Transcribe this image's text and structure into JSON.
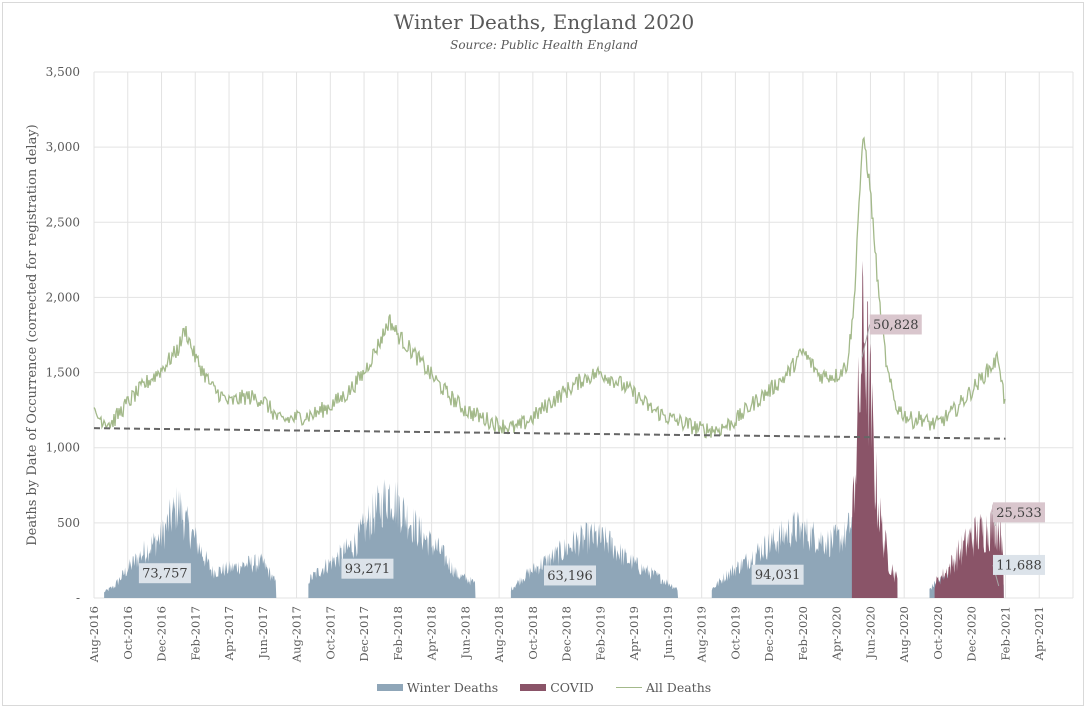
{
  "colors": {
    "winter": "#8fa6b8",
    "covid": "#8a5468",
    "all": "#a3b98a",
    "trend": "#666666",
    "grid": "#e3e3e3",
    "label_winter_bg": "#dce3ea",
    "label_covid_bg": "#d9c6cd",
    "text": "#595959"
  },
  "chart_data": {
    "type": "area",
    "title": "Winter Deaths, England 2020",
    "subtitle": "Source: Public Health England",
    "ylabel": "Deaths by Date of Occurrence (corrected for registration delay)",
    "xlabel": "",
    "ylim": [
      0,
      3500
    ],
    "yticks": [
      {
        "value": 0,
        "label": "-"
      },
      {
        "value": 500,
        "label": "500"
      },
      {
        "value": 1000,
        "label": "1,000"
      },
      {
        "value": 1500,
        "label": "1,500"
      },
      {
        "value": 2000,
        "label": "2,000"
      },
      {
        "value": 2500,
        "label": "2,500"
      },
      {
        "value": 3000,
        "label": "3,000"
      },
      {
        "value": 3500,
        "label": "3,500"
      }
    ],
    "x_unit": "months since Aug-2016",
    "xlim": [
      0,
      58
    ],
    "xticks": [
      "Aug-2016",
      "Oct-2016",
      "Dec-2016",
      "Feb-2017",
      "Apr-2017",
      "Jun-2017",
      "Aug-2017",
      "Oct-2017",
      "Dec-2017",
      "Feb-2018",
      "Apr-2018",
      "Jun-2018",
      "Aug-2018",
      "Oct-2018",
      "Dec-2018",
      "Feb-2019",
      "Apr-2019",
      "Jun-2019",
      "Aug-2019",
      "Oct-2019",
      "Dec-2019",
      "Feb-2020",
      "Apr-2020",
      "Jun-2020",
      "Aug-2020",
      "Oct-2020",
      "Dec-2020",
      "Feb-2021",
      "Apr-2021"
    ],
    "grid": true,
    "legend_position": "bottom",
    "series": [
      {
        "name": "Winter Deaths",
        "type": "area",
        "segments": [
          {
            "x": [
              0.6,
              1.2,
              2,
              3,
              4,
              5,
              5.4,
              6,
              7,
              8,
              9,
              10,
              10.8
            ],
            "y": [
              40,
              80,
              200,
              320,
              420,
              640,
              520,
              400,
              180,
              200,
              230,
              240,
              100
            ]
          },
          {
            "x": [
              12.7,
              13.5,
              14.5,
              15.5,
              16.5,
              17.5,
              18.5,
              19.5,
              20.5,
              21.5,
              22.6
            ],
            "y": [
              120,
              200,
              280,
              380,
              560,
              720,
              560,
              420,
              320,
              160,
              100
            ]
          },
          {
            "x": [
              24.7,
              25.5,
              26.5,
              27.5,
              28.5,
              29.5,
              30.5,
              31.5,
              32.5,
              33.5,
              34.6
            ],
            "y": [
              60,
              150,
              230,
              300,
              380,
              420,
              380,
              270,
              200,
              140,
              60
            ]
          },
          {
            "x": [
              36.6,
              37.5,
              38.5,
              39.5,
              40.5,
              41.5,
              42.5,
              43.5,
              44.5,
              45.3,
              45.8,
              46.5,
              47,
              47.6
            ],
            "y": [
              60,
              160,
              240,
              330,
              400,
              480,
              430,
              380,
              420,
              620,
              500,
              250,
              100,
              60
            ]
          },
          {
            "x": [
              49.5,
              50,
              51,
              52,
              53,
              53.9
            ],
            "y": [
              60,
              120,
              150,
              140,
              110,
              90
            ]
          }
        ]
      },
      {
        "name": "COVID",
        "type": "area",
        "segments": [
          {
            "x": [
              44.9,
              45.3,
              45.6,
              45.9,
              46.3,
              46.7,
              47.1,
              47.6
            ],
            "y": [
              500,
              1300,
              1900,
              1500,
              800,
              450,
              250,
              120
            ]
          },
          {
            "x": [
              49.8,
              50.5,
              51.2,
              52,
              52.7,
              53.4,
              53.9
            ],
            "y": [
              100,
              180,
              300,
              420,
              460,
              520,
              420
            ]
          }
        ]
      },
      {
        "name": "All Deaths",
        "type": "line",
        "x": [
          0,
          1,
          2,
          3,
          4,
          5,
          5.4,
          6,
          7,
          8,
          9,
          10,
          11,
          12,
          13,
          14,
          15,
          16,
          17,
          17.5,
          18,
          19,
          20,
          21,
          22,
          23,
          24,
          25,
          26,
          27,
          28,
          29,
          30,
          31,
          32,
          33,
          34,
          35,
          36,
          37,
          38,
          39,
          40,
          41,
          42,
          43,
          44,
          44.6,
          45,
          45.3,
          45.6,
          46,
          46.5,
          47,
          47.5,
          48,
          48.5,
          49,
          49.5,
          50,
          51,
          52,
          53,
          53.6,
          54
        ],
        "y": [
          1220,
          1160,
          1300,
          1420,
          1520,
          1660,
          1790,
          1600,
          1400,
          1300,
          1340,
          1320,
          1180,
          1200,
          1220,
          1280,
          1360,
          1500,
          1720,
          1850,
          1750,
          1620,
          1480,
          1350,
          1250,
          1200,
          1150,
          1130,
          1200,
          1300,
          1380,
          1460,
          1500,
          1440,
          1360,
          1260,
          1200,
          1160,
          1120,
          1120,
          1180,
          1290,
          1380,
          1480,
          1640,
          1480,
          1480,
          1550,
          1900,
          2600,
          3080,
          2700,
          2000,
          1500,
          1280,
          1220,
          1180,
          1200,
          1160,
          1160,
          1250,
          1380,
          1520,
          1600,
          1260
        ]
      },
      {
        "name": "Trend",
        "type": "dashed-line",
        "x": [
          0,
          54
        ],
        "y": [
          1130,
          1060
        ]
      }
    ],
    "annotations": [
      {
        "text": "73,757",
        "series": "Winter Deaths",
        "x": 4.2,
        "y": 165
      },
      {
        "text": "93,271",
        "series": "Winter Deaths",
        "x": 16.2,
        "y": 195
      },
      {
        "text": "63,196",
        "series": "Winter Deaths",
        "x": 28.2,
        "y": 150
      },
      {
        "text": "94,031",
        "series": "Winter Deaths",
        "x": 40.5,
        "y": 155
      },
      {
        "text": "50,828",
        "series": "COVID",
        "x": 47.5,
        "y": 1820,
        "leader_to": [
          45.5,
          1600
        ]
      },
      {
        "text": "25,533",
        "series": "COVID",
        "x": 54.8,
        "y": 570,
        "leader_to": [
          53.4,
          480
        ]
      },
      {
        "text": "11,688",
        "series": "Winter Deaths",
        "x": 54.8,
        "y": 220,
        "leader_to": [
          53.6,
          80
        ]
      }
    ]
  },
  "legend": [
    {
      "label": "Winter Deaths",
      "kind": "bar"
    },
    {
      "label": "COVID",
      "kind": "bar"
    },
    {
      "label": "All Deaths",
      "kind": "line"
    }
  ]
}
